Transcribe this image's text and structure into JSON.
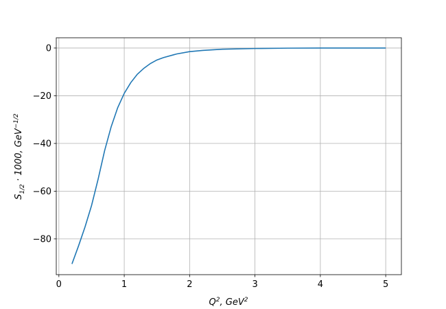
{
  "chart_data": {
    "type": "line",
    "x_label": [
      "Q",
      "2",
      ", GeV",
      "2"
    ],
    "y_label": [
      "S",
      "1/2",
      " · 1000, GeV",
      "−1/2"
    ],
    "x": [
      0.2,
      0.3,
      0.4,
      0.5,
      0.6,
      0.7,
      0.8,
      0.9,
      1.0,
      1.1,
      1.2,
      1.3,
      1.4,
      1.5,
      1.6,
      1.8,
      2.0,
      2.2,
      2.5,
      3.0,
      3.5,
      4.0,
      5.0
    ],
    "series": [
      {
        "color": "#1f77b4",
        "values": [
          -90.5,
          -83,
          -75,
          -66,
          -55,
          -43,
          -33,
          -25,
          -19,
          -14.5,
          -11,
          -8.5,
          -6.5,
          -5,
          -4,
          -2.5,
          -1.5,
          -1,
          -0.5,
          -0.2,
          -0.05,
          0,
          0
        ]
      }
    ],
    "xlim": [
      -0.04,
      5.24
    ],
    "ylim": [
      -95,
      4.3
    ],
    "xticks": [
      0,
      1,
      2,
      3,
      4,
      5
    ],
    "yticks": [
      {
        "value": -80,
        "label": "−80"
      },
      {
        "value": -60,
        "label": "−60"
      },
      {
        "value": -40,
        "label": "−40"
      },
      {
        "value": -20,
        "label": "−20"
      },
      0
    ],
    "grid": true
  }
}
